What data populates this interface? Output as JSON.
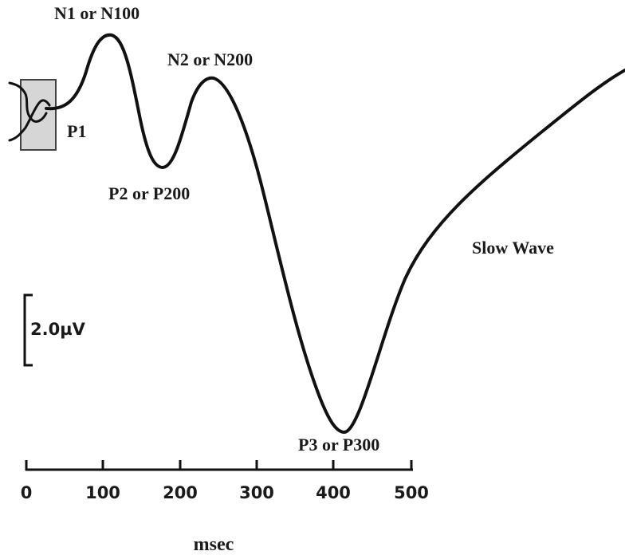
{
  "components": {
    "n1": "N1 or N100",
    "p1": "P1",
    "n2": "N2 or N200",
    "p2": "P2 or P200",
    "p3": "P3 or P300",
    "slow_wave": "Slow Wave"
  },
  "scale_bar": {
    "label": "2.0µV"
  },
  "axis": {
    "unit": "msec",
    "tick_labels": [
      "0",
      "100",
      "200",
      "300",
      "400",
      "500"
    ]
  },
  "colors": {
    "trace": "#111111",
    "stimulus_box_fill": "#d6d6d6",
    "stimulus_box_stroke": "#444444"
  }
}
